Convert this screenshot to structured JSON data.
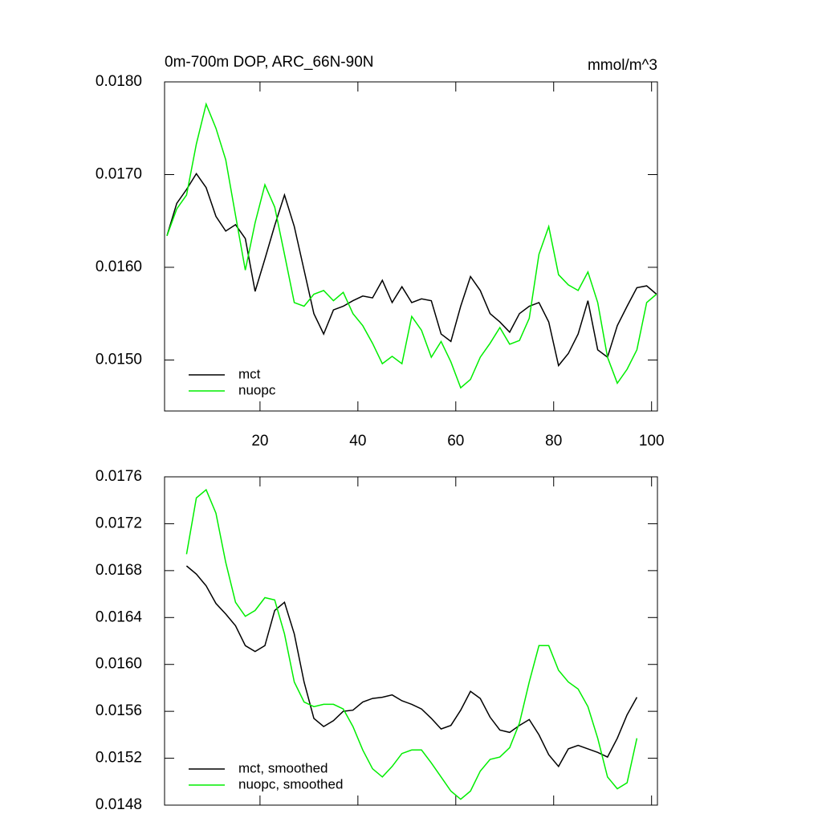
{
  "chart_data": [
    {
      "type": "line",
      "title": "0m-700m DOP, ARC_66N-90N",
      "subtitle": "mmol/m^3",
      "x": [
        1,
        3,
        5,
        7,
        9,
        11,
        13,
        15,
        17,
        19,
        21,
        23,
        25,
        27,
        29,
        31,
        33,
        35,
        37,
        39,
        41,
        43,
        45,
        47,
        49,
        51,
        53,
        55,
        57,
        59,
        61,
        63,
        65,
        67,
        69,
        71,
        73,
        75,
        77,
        79,
        81,
        83,
        85,
        87,
        89,
        91,
        93,
        95,
        97,
        99,
        101
      ],
      "series": [
        {
          "name": "mct",
          "color": "#000000",
          "values": [
            0.01634,
            0.01669,
            0.01684,
            0.01701,
            0.01686,
            0.01655,
            0.01639,
            0.01646,
            0.01631,
            0.01574,
            0.01609,
            0.01645,
            0.01678,
            0.01644,
            0.01597,
            0.0155,
            0.01528,
            0.01554,
            0.01558,
            0.01564,
            0.01569,
            0.01567,
            0.01586,
            0.01562,
            0.01579,
            0.01562,
            0.01566,
            0.01564,
            0.01528,
            0.0152,
            0.01558,
            0.0159,
            0.01575,
            0.0155,
            0.01541,
            0.0153,
            0.0155,
            0.01558,
            0.01562,
            0.01541,
            0.01494,
            0.01507,
            0.01528,
            0.01564,
            0.01511,
            0.01503,
            0.01537,
            0.01558,
            0.01578,
            0.0158,
            0.01571
          ]
        },
        {
          "name": "nuopc",
          "color": "#00ee00",
          "values": [
            0.01634,
            0.01663,
            0.01678,
            0.01733,
            0.01776,
            0.0175,
            0.01716,
            0.01656,
            0.01597,
            0.01648,
            0.01689,
            0.01665,
            0.01614,
            0.01562,
            0.01558,
            0.01571,
            0.01575,
            0.01564,
            0.01573,
            0.0155,
            0.01537,
            0.01518,
            0.01496,
            0.01504,
            0.01496,
            0.01547,
            0.01532,
            0.01503,
            0.0152,
            0.01498,
            0.0147,
            0.01479,
            0.01503,
            0.01518,
            0.01535,
            0.01517,
            0.01521,
            0.01545,
            0.01614,
            0.01644,
            0.01592,
            0.01581,
            0.01575,
            0.01595,
            0.01562,
            0.01503,
            0.01475,
            0.0149,
            0.01511,
            0.01562,
            0.01571
          ]
        }
      ],
      "xlim": [
        0.5,
        101.2
      ],
      "xticks": [
        20,
        40,
        60,
        80,
        100
      ],
      "show_xtick_labels": true,
      "ylim": [
        0.01445,
        0.018
      ],
      "yticks": [
        {
          "value": 0.015,
          "label": "0.0150"
        },
        {
          "value": 0.016,
          "label": "0.0160"
        },
        {
          "value": 0.017,
          "label": "0.0170"
        },
        {
          "value": 0.018,
          "label": "0.0180"
        }
      ],
      "legend": "lower-left"
    },
    {
      "type": "line",
      "x": [
        5,
        7,
        9,
        11,
        13,
        15,
        17,
        19,
        21,
        23,
        25,
        27,
        29,
        31,
        33,
        35,
        37,
        39,
        41,
        43,
        45,
        47,
        49,
        51,
        53,
        55,
        57,
        59,
        61,
        63,
        65,
        67,
        69,
        71,
        73,
        75,
        77,
        79,
        81,
        83,
        85,
        87,
        89,
        91,
        93,
        95,
        97
      ],
      "series": [
        {
          "name": "mct, smoothed",
          "color": "#000000",
          "values": [
            0.01684,
            0.01677,
            0.01667,
            0.01652,
            0.01643,
            0.01633,
            0.01616,
            0.01611,
            0.01616,
            0.01646,
            0.01653,
            0.01626,
            0.01585,
            0.01554,
            0.01547,
            0.01552,
            0.0156,
            0.01561,
            0.01568,
            0.01571,
            0.01572,
            0.01574,
            0.01569,
            0.01566,
            0.01562,
            0.01554,
            0.01545,
            0.01548,
            0.01561,
            0.01577,
            0.01571,
            0.01555,
            0.01544,
            0.01542,
            0.01548,
            0.01553,
            0.0154,
            0.01523,
            0.01513,
            0.01528,
            0.01531,
            0.01528,
            0.01525,
            0.01521,
            0.01537,
            0.01557,
            0.01572
          ]
        },
        {
          "name": "nuopc, smoothed",
          "color": "#00ee00",
          "values": [
            0.01694,
            0.01742,
            0.01749,
            0.01729,
            0.01687,
            0.01653,
            0.01641,
            0.01646,
            0.01657,
            0.01655,
            0.01626,
            0.01585,
            0.01568,
            0.01564,
            0.01566,
            0.01566,
            0.01562,
            0.01547,
            0.01527,
            0.01511,
            0.01504,
            0.01513,
            0.01524,
            0.01527,
            0.01527,
            0.01516,
            0.01504,
            0.01492,
            0.01485,
            0.01492,
            0.01509,
            0.01519,
            0.01521,
            0.01529,
            0.0155,
            0.01585,
            0.01616,
            0.01616,
            0.01595,
            0.01585,
            0.01579,
            0.01564,
            0.01537,
            0.01504,
            0.01494,
            0.01499,
            0.01537
          ]
        }
      ],
      "xlim": [
        0.5,
        101.2
      ],
      "xticks": [
        20,
        40,
        60,
        80,
        100
      ],
      "show_xtick_labels": false,
      "ylim": [
        0.0148,
        0.0176
      ],
      "yticks": [
        {
          "value": 0.0148,
          "label": "0.0148"
        },
        {
          "value": 0.0152,
          "label": "0.0152"
        },
        {
          "value": 0.0156,
          "label": "0.0156"
        },
        {
          "value": 0.016,
          "label": "0.0160"
        },
        {
          "value": 0.0164,
          "label": "0.0164"
        },
        {
          "value": 0.0168,
          "label": "0.0168"
        },
        {
          "value": 0.0172,
          "label": "0.0172"
        },
        {
          "value": 0.0176,
          "label": "0.0176"
        }
      ],
      "legend": "lower-left"
    }
  ]
}
